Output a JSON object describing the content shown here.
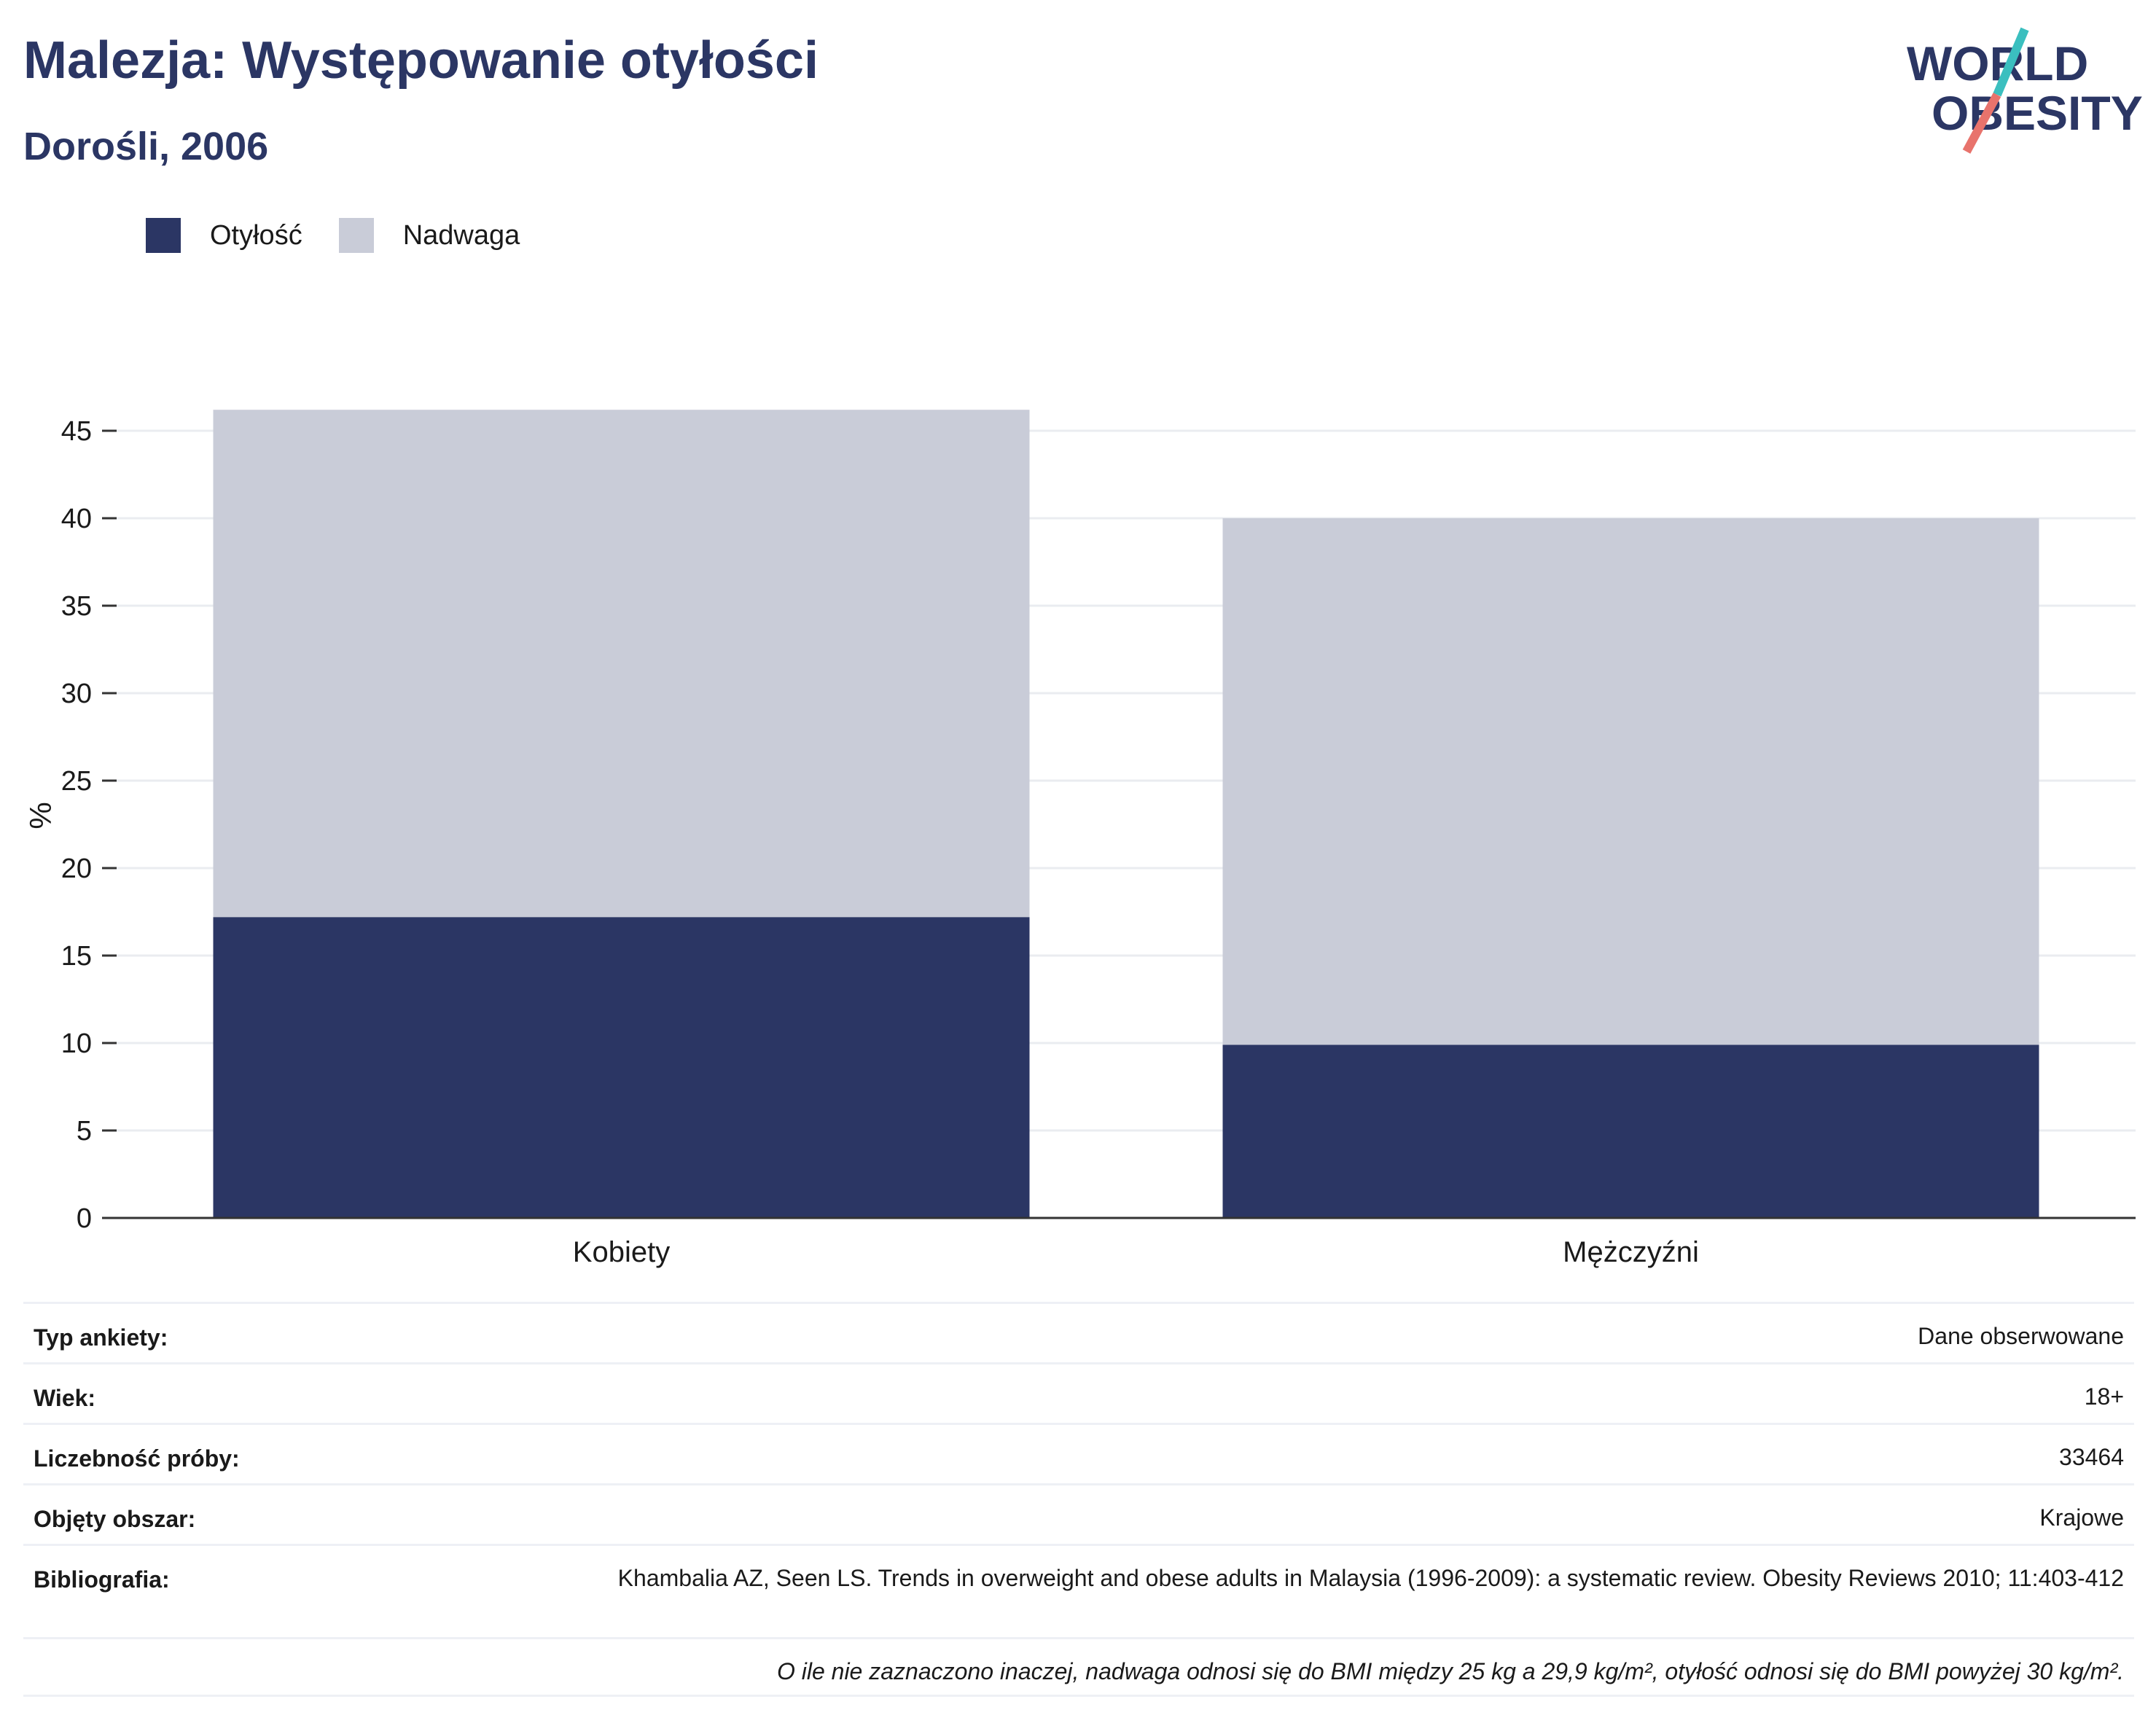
{
  "header": {
    "title": "Malezja: Występowanie otyłości",
    "subtitle": "Dorośli, 2006"
  },
  "logo": {
    "line1": "WORLD",
    "line2": "OBESITY"
  },
  "colors": {
    "obesity": "#2b3664",
    "overweight": "#c9ccd8",
    "title": "#2b3664",
    "logo_teal": "#3bbfbf",
    "logo_coral": "#e8736c"
  },
  "legend": [
    {
      "label": "Otyłość",
      "color": "#2b3664"
    },
    {
      "label": "Nadwaga",
      "color": "#c9ccd8"
    }
  ],
  "chart_data": {
    "type": "bar",
    "stacked": true,
    "categories": [
      "Kobiety",
      "Mężczyźni"
    ],
    "series": [
      {
        "name": "Otyłość",
        "values": [
          17.2,
          9.9
        ],
        "color": "#2b3664"
      },
      {
        "name": "Nadwaga",
        "values": [
          29.0,
          30.1
        ],
        "color": "#c9ccd8"
      }
    ],
    "ylabel": "%",
    "ylim": [
      0,
      46.2
    ],
    "yticks": [
      0,
      5,
      10,
      15,
      20,
      25,
      30,
      35,
      40,
      45
    ],
    "grid": true,
    "legend_position": "top-left"
  },
  "info": [
    {
      "key": "Typ ankiety:",
      "value": "Dane obserwowane"
    },
    {
      "key": "Wiek:",
      "value": "18+"
    },
    {
      "key": "Liczebność próby:",
      "value": "33464"
    },
    {
      "key": "Objęty obszar:",
      "value": "Krajowe"
    },
    {
      "key": "Bibliografia:",
      "value": "Khambalia AZ, Seen LS. Trends in overweight and obese adults in Malaysia (1996-2009): a systematic review. Obesity Reviews 2010; 11:403-412"
    }
  ],
  "footnote": "O ile nie zaznaczono inaczej, nadwaga odnosi się do BMI między 25 kg a 29,9 kg/m², otyłość odnosi się do BMI powyżej 30 kg/m²."
}
